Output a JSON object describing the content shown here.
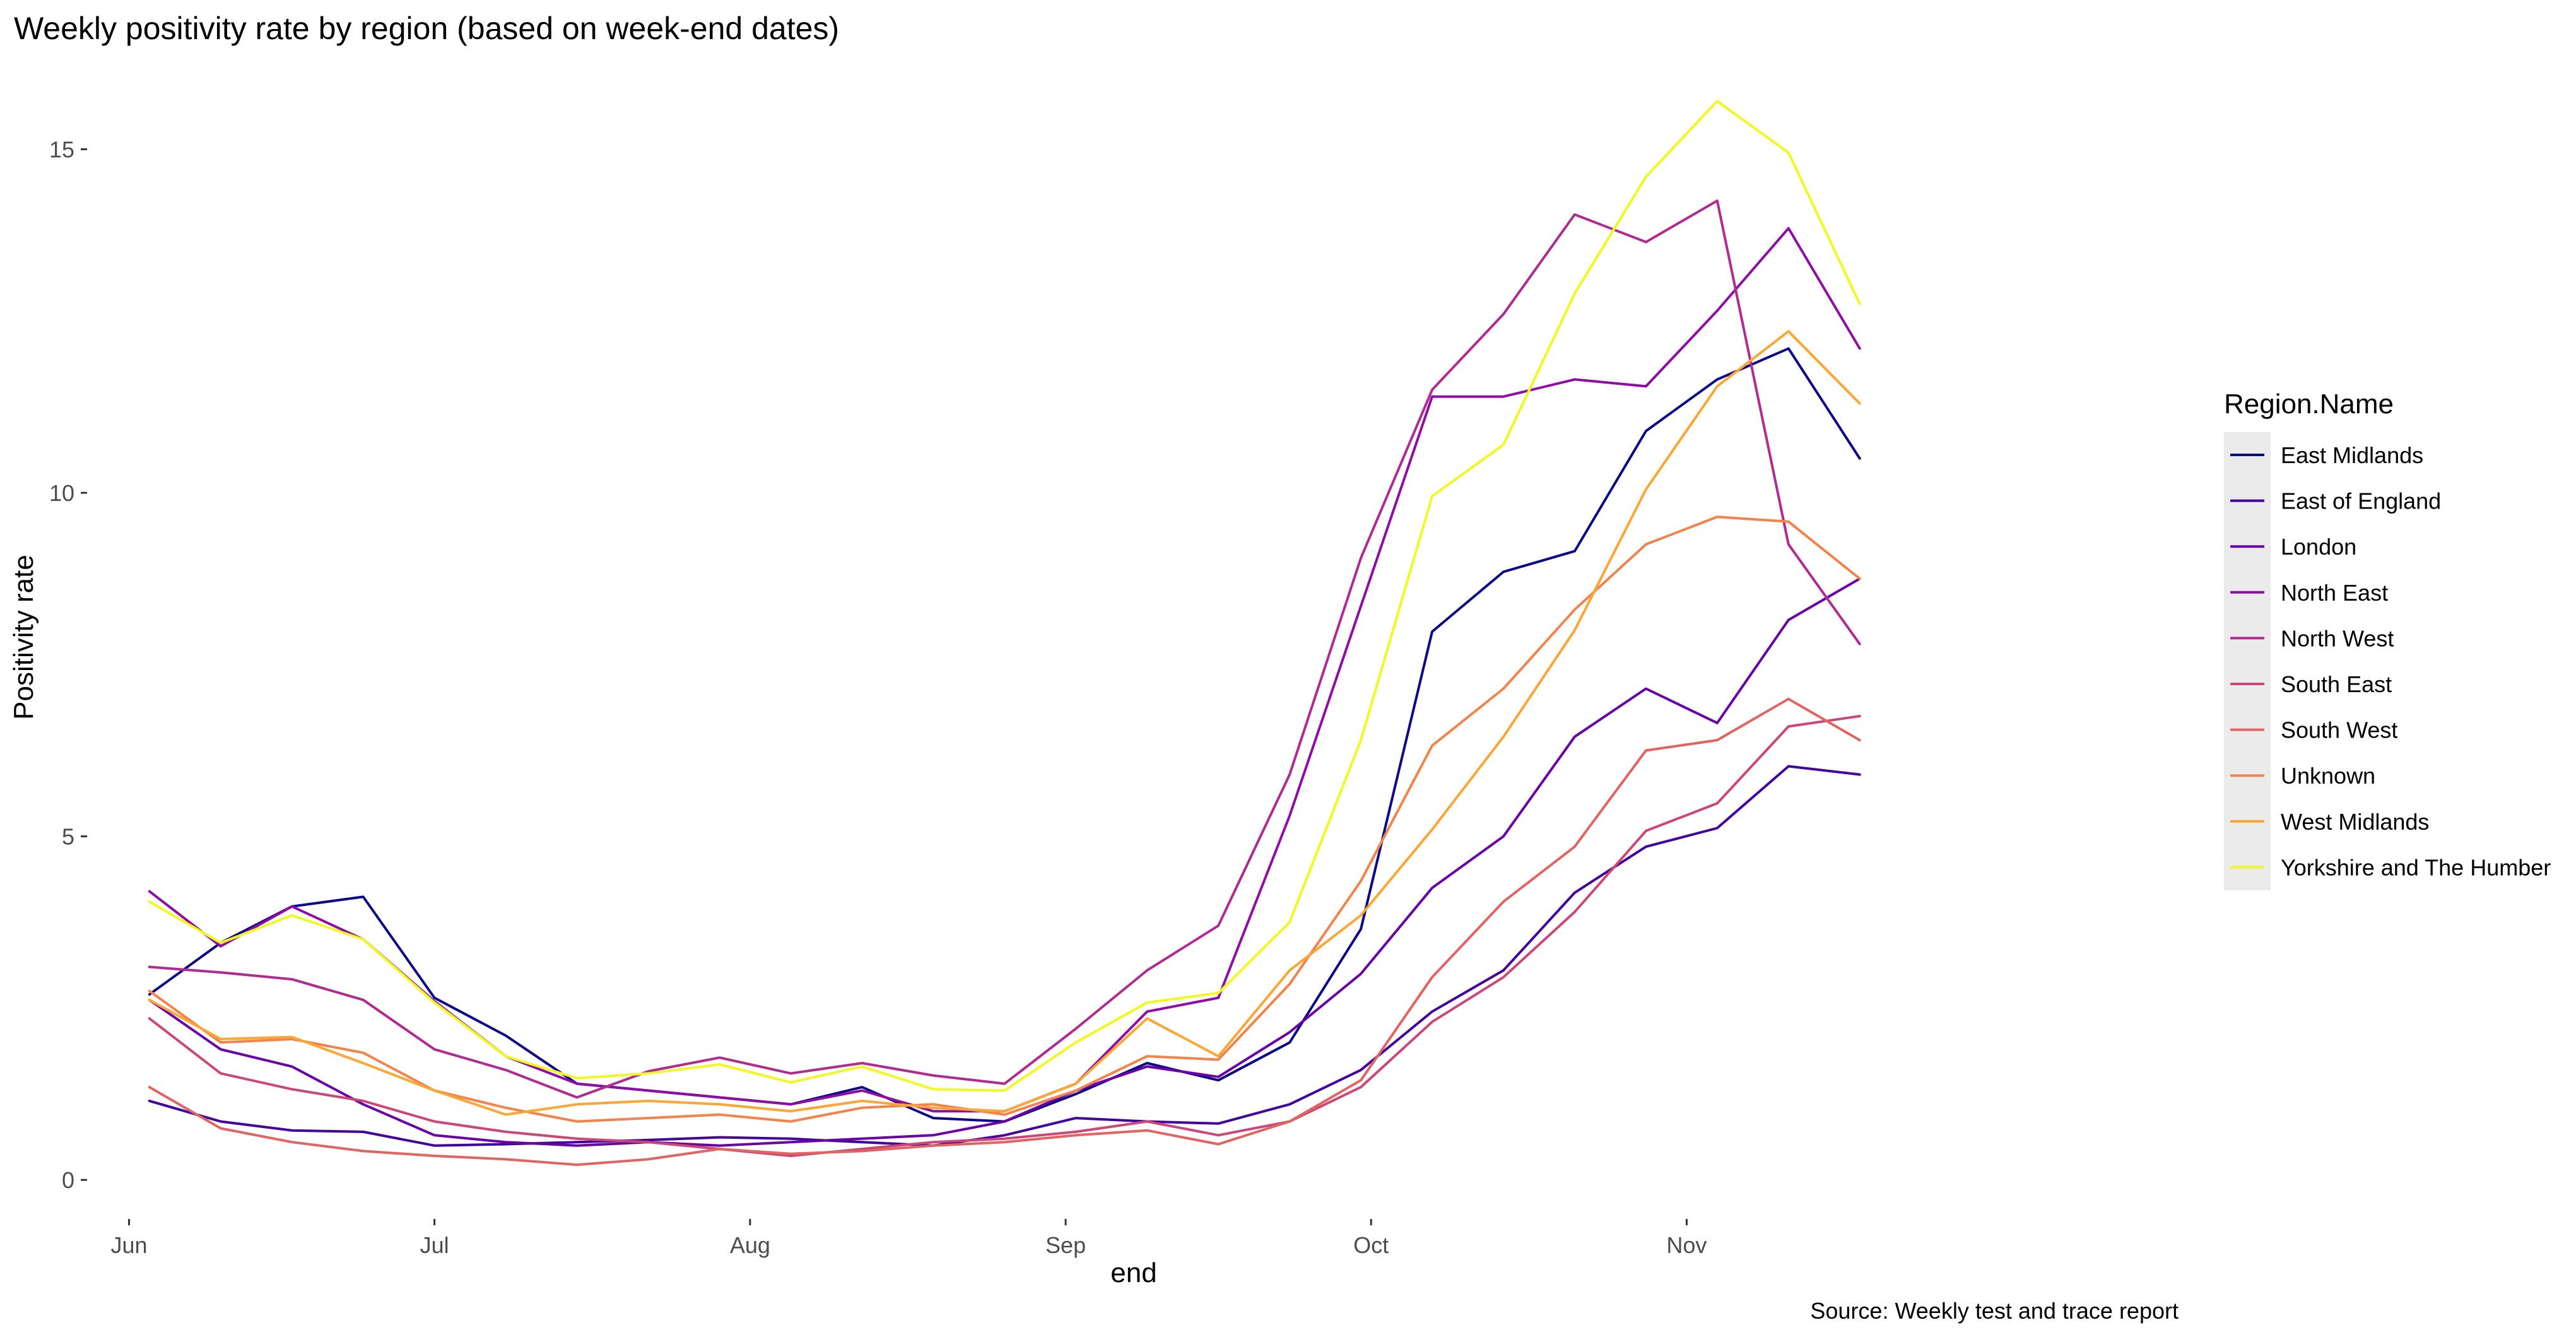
{
  "chart_data": {
    "type": "line",
    "title": "Weekly positivity rate by region (based on week-end dates)",
    "xlabel": "end",
    "ylabel": "Positivity rate",
    "caption": "Source: Weekly test and trace report",
    "legend_title": "Region.Name",
    "legend_position": "right",
    "grid": false,
    "x_type": "date",
    "x_ticks": [
      {
        "label": "Jun",
        "date": "2020-06-01"
      },
      {
        "label": "Jul",
        "date": "2020-07-01"
      },
      {
        "label": "Aug",
        "date": "2020-08-01"
      },
      {
        "label": "Sep",
        "date": "2020-09-01"
      },
      {
        "label": "Oct",
        "date": "2020-10-01"
      },
      {
        "label": "Nov",
        "date": "2020-11-01"
      }
    ],
    "y_ticks": [
      0,
      5,
      10,
      15
    ],
    "xlim": [
      "2020-05-28",
      "2020-12-12"
    ],
    "ylim": [
      -0.55,
      16.3
    ],
    "x": [
      "2020-06-03",
      "2020-06-10",
      "2020-06-17",
      "2020-06-24",
      "2020-07-01",
      "2020-07-08",
      "2020-07-15",
      "2020-07-22",
      "2020-07-29",
      "2020-08-05",
      "2020-08-12",
      "2020-08-19",
      "2020-08-26",
      "2020-09-02",
      "2020-09-09",
      "2020-09-16",
      "2020-09-23",
      "2020-09-30",
      "2020-10-07",
      "2020-10-14",
      "2020-10-21",
      "2020-10-28",
      "2020-11-04",
      "2020-11-11",
      "2020-11-18"
    ],
    "series": [
      {
        "name": "East Midlands",
        "color": "#0D0887",
        "values": [
          2.7,
          3.45,
          3.98,
          4.12,
          2.65,
          2.1,
          1.4,
          1.3,
          1.2,
          1.1,
          1.35,
          0.9,
          0.85,
          1.25,
          1.7,
          1.45,
          2.0,
          3.65,
          7.98,
          8.85,
          9.15,
          10.9,
          11.65,
          12.1,
          10.5
        ]
      },
      {
        "name": "East of England",
        "color": "#41049D",
        "values": [
          1.15,
          0.85,
          0.72,
          0.7,
          0.5,
          0.52,
          0.55,
          0.58,
          0.62,
          0.6,
          0.55,
          0.5,
          0.65,
          0.9,
          0.85,
          0.82,
          1.1,
          1.6,
          2.45,
          3.05,
          4.18,
          4.85,
          5.12,
          6.02,
          5.9
        ]
      },
      {
        "name": "London",
        "color": "#6A00A8",
        "values": [
          2.62,
          1.9,
          1.65,
          1.1,
          0.65,
          0.55,
          0.5,
          0.55,
          0.5,
          0.55,
          0.6,
          0.65,
          0.85,
          1.3,
          1.65,
          1.5,
          2.15,
          3.0,
          4.25,
          5.0,
          6.45,
          7.15,
          6.65,
          8.15,
          8.75
        ]
      },
      {
        "name": "North East",
        "color": "#8F0DA4",
        "values": [
          4.2,
          3.4,
          3.98,
          3.5,
          2.6,
          1.8,
          1.4,
          1.3,
          1.2,
          1.1,
          1.3,
          1.0,
          1.0,
          1.4,
          2.45,
          2.65,
          5.3,
          8.35,
          11.4,
          11.4,
          11.65,
          11.55,
          12.65,
          13.85,
          12.1
        ]
      },
      {
        "name": "North West",
        "color": "#B12A90",
        "values": [
          3.1,
          3.02,
          2.92,
          2.62,
          1.9,
          1.6,
          1.2,
          1.58,
          1.78,
          1.55,
          1.7,
          1.52,
          1.4,
          2.2,
          3.05,
          3.7,
          5.9,
          9.05,
          11.5,
          12.6,
          14.05,
          13.65,
          14.25,
          9.25,
          7.8
        ]
      },
      {
        "name": "South East",
        "color": "#CC4778",
        "values": [
          2.35,
          1.55,
          1.32,
          1.15,
          0.85,
          0.7,
          0.6,
          0.55,
          0.45,
          0.35,
          0.45,
          0.55,
          0.6,
          0.7,
          0.85,
          0.65,
          0.85,
          1.35,
          2.3,
          2.95,
          3.9,
          5.08,
          5.48,
          6.6,
          6.75
        ]
      },
      {
        "name": "South West",
        "color": "#E16462",
        "values": [
          1.35,
          0.75,
          0.55,
          0.42,
          0.35,
          0.3,
          0.22,
          0.3,
          0.45,
          0.38,
          0.42,
          0.5,
          0.55,
          0.65,
          0.72,
          0.52,
          0.85,
          1.45,
          2.95,
          4.05,
          4.85,
          6.25,
          6.4,
          7.0,
          6.4
        ]
      },
      {
        "name": "Unknown",
        "color": "#F2844B",
        "values": [
          2.75,
          2.0,
          2.05,
          1.85,
          1.3,
          1.05,
          0.85,
          0.9,
          0.95,
          0.85,
          1.05,
          1.1,
          0.95,
          1.3,
          1.8,
          1.75,
          2.85,
          4.35,
          6.32,
          7.15,
          8.3,
          9.25,
          9.65,
          9.58,
          8.75
        ]
      },
      {
        "name": "West Midlands",
        "color": "#FCA636",
        "values": [
          2.62,
          2.05,
          2.08,
          1.7,
          1.3,
          0.95,
          1.1,
          1.15,
          1.1,
          1.0,
          1.15,
          1.05,
          1.0,
          1.4,
          2.35,
          1.8,
          3.05,
          3.85,
          5.1,
          6.45,
          8.0,
          10.05,
          11.55,
          12.35,
          11.3
        ]
      },
      {
        "name": "Yorkshire and The Humber",
        "color": "#F0F921",
        "values": [
          4.05,
          3.45,
          3.85,
          3.5,
          2.58,
          1.8,
          1.48,
          1.55,
          1.68,
          1.42,
          1.65,
          1.32,
          1.3,
          2.0,
          2.58,
          2.72,
          3.75,
          6.4,
          9.95,
          10.7,
          12.9,
          14.6,
          15.7,
          14.95,
          12.75
        ]
      }
    ]
  }
}
